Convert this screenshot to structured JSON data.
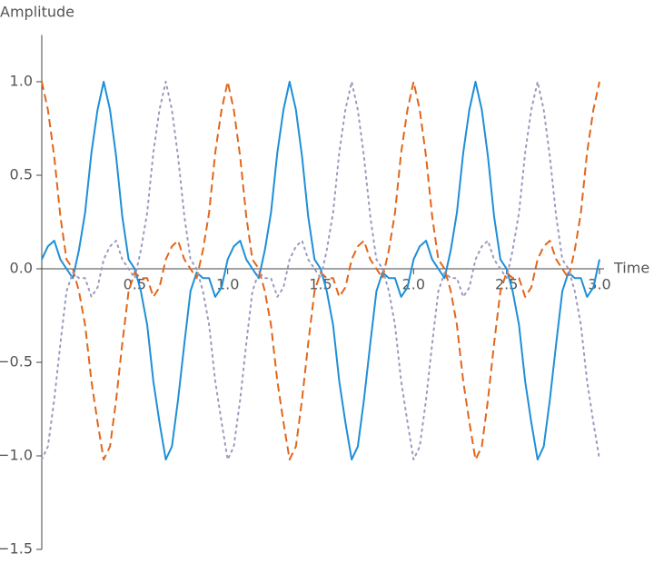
{
  "chart_data": {
    "type": "line",
    "y_label": "Amplitude",
    "x_label": "Time",
    "xlim": [
      0,
      3
    ],
    "ylim": [
      -1.5,
      1.25
    ],
    "xticks": [
      0.5,
      {
        "value": 1,
        "label": "1.0"
      },
      {
        "value": 1.5,
        "label": "1.5"
      },
      {
        "value": 2,
        "label": "2.0"
      },
      2.5,
      {
        "value": 3,
        "label": "3.0"
      }
    ],
    "yticks": [
      {
        "value": -1.5,
        "label": "−1.5"
      },
      {
        "value": -1,
        "label": "−1.0"
      },
      {
        "value": -0.5,
        "label": "−0.5"
      },
      {
        "value": 0,
        "label": "0.0"
      },
      0.5,
      {
        "value": 1,
        "label": "1.0"
      }
    ],
    "x": [
      0,
      0.033,
      0.067,
      0.1,
      0.133,
      0.167,
      0.2,
      0.233,
      0.267,
      0.3,
      0.333,
      0.367,
      0.4,
      0.433,
      0.467,
      0.5,
      0.533,
      0.567,
      0.6,
      0.633,
      0.667,
      0.7,
      0.733,
      0.767,
      0.8,
      0.833,
      0.867,
      0.9,
      0.933,
      0.967,
      1,
      1.033,
      1.067,
      1.1,
      1.133,
      1.167,
      1.2,
      1.233,
      1.267,
      1.3,
      1.333,
      1.367,
      1.4,
      1.433,
      1.467,
      1.5,
      1.533,
      1.567,
      1.6,
      1.633,
      1.667,
      1.7,
      1.733,
      1.767,
      1.8,
      1.833,
      1.867,
      1.9,
      1.933,
      1.967,
      2,
      2.033,
      2.067,
      2.1,
      2.133,
      2.167,
      2.2,
      2.233,
      2.267,
      2.3,
      2.333,
      2.367,
      2.4,
      2.433,
      2.467,
      2.5,
      2.533,
      2.567,
      2.6,
      2.633,
      2.667,
      2.7,
      2.733,
      2.767,
      2.8,
      2.833,
      2.867,
      2.9,
      2.933,
      2.967,
      3
    ],
    "series": [
      {
        "color": "#1e8fd8",
        "dash": "solid",
        "values": [
          0.05,
          0.12,
          0.15,
          0.05,
          0.0,
          -0.05,
          0.1,
          0.3,
          0.62,
          0.85,
          1.0,
          0.85,
          0.6,
          0.28,
          0.05,
          0.0,
          -0.12,
          -0.3,
          -0.6,
          -0.82,
          -1.02,
          -0.95,
          -0.7,
          -0.4,
          -0.12,
          -0.02,
          -0.05,
          -0.05,
          -0.15,
          -0.1,
          0.05,
          0.12,
          0.15,
          0.05,
          0.0,
          -0.05,
          0.1,
          0.3,
          0.62,
          0.85,
          1.0,
          0.85,
          0.6,
          0.28,
          0.05,
          0.0,
          -0.12,
          -0.3,
          -0.6,
          -0.82,
          -1.02,
          -0.95,
          -0.7,
          -0.4,
          -0.12,
          -0.02,
          -0.05,
          -0.05,
          -0.15,
          -0.1,
          0.05,
          0.12,
          0.15,
          0.05,
          0.0,
          -0.05,
          0.1,
          0.3,
          0.62,
          0.85,
          1.0,
          0.85,
          0.6,
          0.28,
          0.05,
          0.0,
          -0.12,
          -0.3,
          -0.6,
          -0.82,
          -1.02,
          -0.95,
          -0.7,
          -0.4,
          -0.12,
          -0.02,
          -0.05,
          -0.05,
          -0.15,
          -0.1,
          0.05
        ]
      },
      {
        "color": "#e2661c",
        "dash": "dashed",
        "values": [
          1.0,
          0.85,
          0.6,
          0.28,
          0.05,
          0.0,
          -0.12,
          -0.3,
          -0.6,
          -0.82,
          -1.02,
          -0.95,
          -0.7,
          -0.4,
          -0.12,
          -0.02,
          -0.05,
          -0.05,
          -0.15,
          -0.1,
          0.05,
          0.12,
          0.15,
          0.05,
          0.0,
          -0.05,
          0.1,
          0.3,
          0.62,
          0.85,
          1.0,
          0.85,
          0.6,
          0.28,
          0.05,
          0.0,
          -0.12,
          -0.3,
          -0.6,
          -0.82,
          -1.02,
          -0.95,
          -0.7,
          -0.4,
          -0.12,
          -0.02,
          -0.05,
          -0.05,
          -0.15,
          -0.1,
          0.05,
          0.12,
          0.15,
          0.05,
          0.0,
          -0.05,
          0.1,
          0.3,
          0.62,
          0.85,
          1.0,
          0.85,
          0.6,
          0.28,
          0.05,
          0.0,
          -0.12,
          -0.3,
          -0.6,
          -0.82,
          -1.02,
          -0.95,
          -0.7,
          -0.4,
          -0.12,
          -0.02,
          -0.05,
          -0.05,
          -0.15,
          -0.1,
          0.05,
          0.12,
          0.15,
          0.05,
          0.0,
          -0.05,
          0.1,
          0.3,
          0.62,
          0.85,
          1.0
        ]
      },
      {
        "color": "#9a9abf",
        "dash": "dotted",
        "values": [
          -1.02,
          -0.95,
          -0.7,
          -0.4,
          -0.12,
          -0.02,
          -0.05,
          -0.05,
          -0.15,
          -0.1,
          0.05,
          0.12,
          0.15,
          0.05,
          0.0,
          -0.05,
          0.1,
          0.3,
          0.62,
          0.85,
          1.0,
          0.85,
          0.6,
          0.28,
          0.05,
          0.0,
          -0.12,
          -0.3,
          -0.6,
          -0.82,
          -1.02,
          -0.95,
          -0.7,
          -0.4,
          -0.12,
          -0.02,
          -0.05,
          -0.05,
          -0.15,
          -0.1,
          0.05,
          0.12,
          0.15,
          0.05,
          0.0,
          -0.05,
          0.1,
          0.3,
          0.62,
          0.85,
          1.0,
          0.85,
          0.6,
          0.28,
          0.05,
          0.0,
          -0.12,
          -0.3,
          -0.6,
          -0.82,
          -1.02,
          -0.95,
          -0.7,
          -0.4,
          -0.12,
          -0.02,
          -0.05,
          -0.05,
          -0.15,
          -0.1,
          0.05,
          0.12,
          0.15,
          0.05,
          0.0,
          -0.05,
          0.1,
          0.3,
          0.62,
          0.85,
          1.0,
          0.85,
          0.6,
          0.28,
          0.05,
          0.0,
          -0.12,
          -0.3,
          -0.6,
          -0.82,
          -1.02
        ]
      }
    ]
  }
}
